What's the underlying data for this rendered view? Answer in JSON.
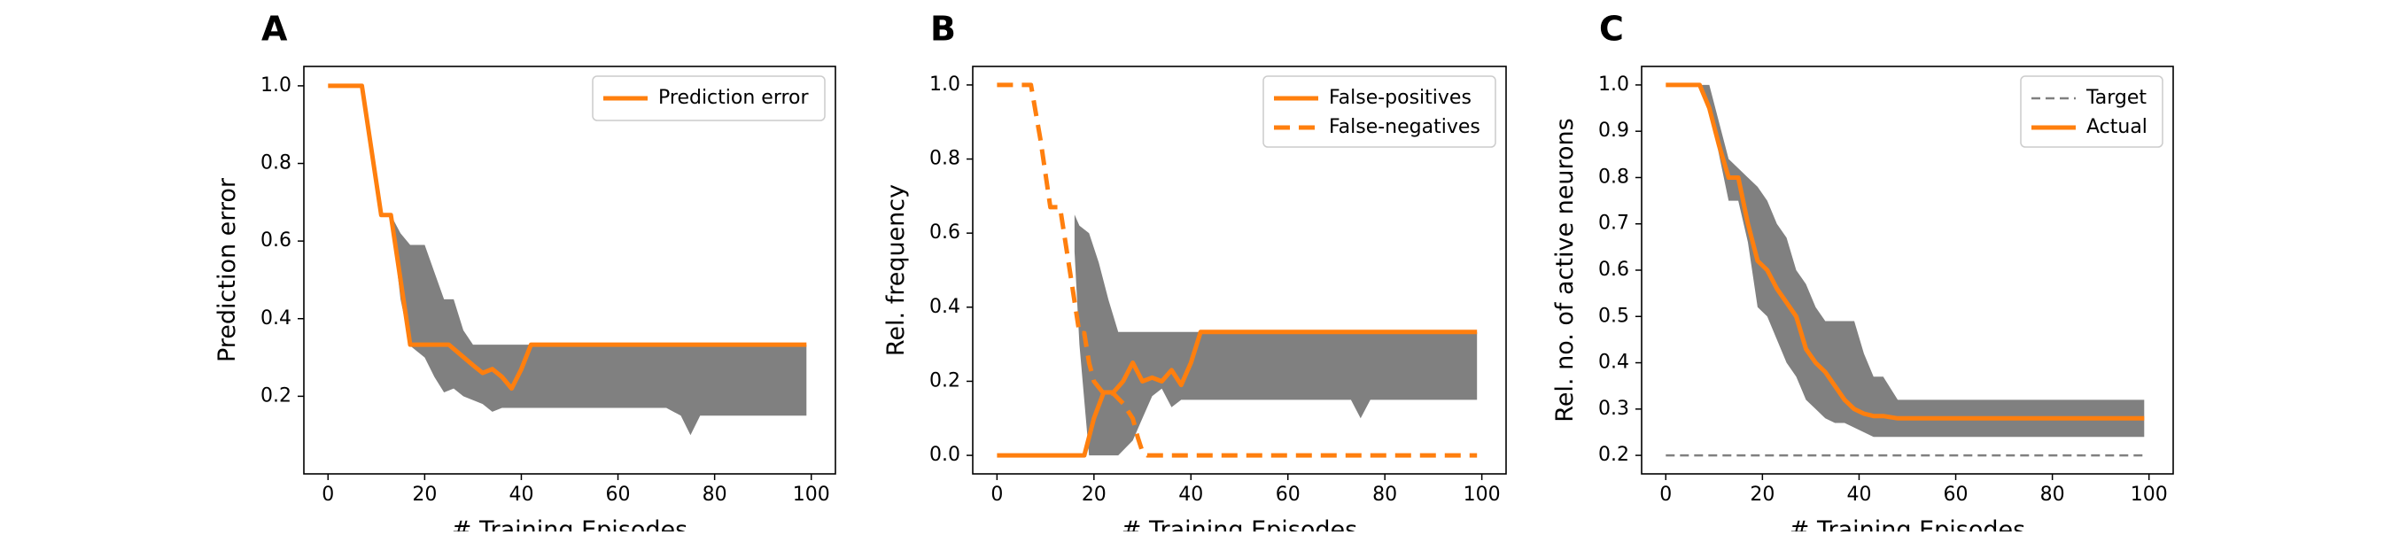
{
  "figure": {
    "panel_letters": [
      "A",
      "B",
      "C"
    ]
  },
  "colors": {
    "accent": "#ff7f0e",
    "band": "#808080",
    "target": "#808080",
    "axis": "#000000"
  },
  "chart_data": [
    {
      "type": "line",
      "panel": "A",
      "xlabel": "# Training Episodes",
      "ylabel": "Prediction error",
      "xlim": [
        -5,
        105
      ],
      "ylim": [
        0.0,
        1.05
      ],
      "xticks": [
        0,
        20,
        40,
        60,
        80,
        100
      ],
      "yticks": [
        0.2,
        0.4,
        0.6,
        0.8,
        1.0
      ],
      "legend_position": "top-right",
      "series": [
        {
          "name": "Prediction error",
          "style": "solid",
          "x": [
            0,
            7,
            11,
            13,
            15,
            17,
            20,
            25,
            30,
            32,
            34,
            36,
            38,
            40,
            42,
            99
          ],
          "y": [
            1.0,
            1.0,
            0.667,
            0.667,
            0.5,
            0.333,
            0.333,
            0.333,
            0.28,
            0.26,
            0.27,
            0.25,
            0.22,
            0.27,
            0.333,
            0.333
          ]
        }
      ],
      "band": {
        "x": [
          13,
          15,
          17,
          20,
          22,
          24,
          26,
          28,
          30,
          32,
          34,
          36,
          40,
          50,
          60,
          70,
          73,
          75,
          77,
          80,
          90,
          99
        ],
        "upper": [
          0.667,
          0.62,
          0.59,
          0.59,
          0.52,
          0.45,
          0.45,
          0.37,
          0.333,
          0.333,
          0.333,
          0.333,
          0.333,
          0.333,
          0.333,
          0.333,
          0.333,
          0.333,
          0.333,
          0.333,
          0.333,
          0.333
        ],
        "lower": [
          0.667,
          0.45,
          0.33,
          0.3,
          0.25,
          0.21,
          0.22,
          0.2,
          0.19,
          0.18,
          0.16,
          0.17,
          0.17,
          0.17,
          0.17,
          0.17,
          0.15,
          0.1,
          0.15,
          0.15,
          0.15,
          0.15
        ]
      }
    },
    {
      "type": "line",
      "panel": "B",
      "xlabel": "# Training Episodes",
      "ylabel": "Rel. frequency",
      "xlim": [
        -5,
        105
      ],
      "ylim": [
        -0.05,
        1.05
      ],
      "xticks": [
        0,
        20,
        40,
        60,
        80,
        100
      ],
      "yticks": [
        0.0,
        0.2,
        0.4,
        0.6,
        0.8,
        1.0
      ],
      "legend_position": "top-right",
      "series": [
        {
          "name": "False-positives",
          "style": "solid",
          "x": [
            0,
            15,
            18,
            20,
            22,
            24,
            26,
            28,
            30,
            32,
            34,
            36,
            38,
            40,
            42,
            99
          ],
          "y": [
            0,
            0,
            0,
            0.1,
            0.17,
            0.17,
            0.2,
            0.25,
            0.2,
            0.21,
            0.2,
            0.23,
            0.19,
            0.25,
            0.333,
            0.333
          ]
        },
        {
          "name": "False-negatives",
          "style": "dashed",
          "x": [
            0,
            7,
            9,
            11,
            13,
            15,
            17,
            18,
            19,
            20,
            22,
            24,
            26,
            28,
            29,
            30,
            31,
            99
          ],
          "y": [
            1.0,
            1.0,
            0.85,
            0.67,
            0.67,
            0.5,
            0.33,
            0.33,
            0.25,
            0.2,
            0.167,
            0.167,
            0.14,
            0.1,
            0.05,
            0.01,
            0,
            0
          ]
        }
      ],
      "band": {
        "x": [
          16,
          17,
          19,
          21,
          23,
          25,
          28,
          30,
          32,
          34,
          36,
          38,
          40,
          42,
          50,
          60,
          70,
          73,
          75,
          77,
          80,
          90,
          99
        ],
        "upper": [
          0.65,
          0.62,
          0.6,
          0.52,
          0.42,
          0.333,
          0.333,
          0.333,
          0.333,
          0.333,
          0.333,
          0.333,
          0.333,
          0.333,
          0.333,
          0.333,
          0.333,
          0.333,
          0.333,
          0.333,
          0.333,
          0.333,
          0.333
        ],
        "lower": [
          0.55,
          0.3,
          0.0,
          0.0,
          0.0,
          0.0,
          0.04,
          0.1,
          0.16,
          0.18,
          0.13,
          0.15,
          0.15,
          0.15,
          0.15,
          0.15,
          0.15,
          0.15,
          0.1,
          0.15,
          0.15,
          0.15,
          0.15
        ]
      }
    },
    {
      "type": "line",
      "panel": "C",
      "xlabel": "# Training Episodes",
      "ylabel": "Rel. no. of active neurons",
      "xlim": [
        -5,
        105
      ],
      "ylim": [
        0.16,
        1.04
      ],
      "xticks": [
        0,
        20,
        40,
        60,
        80,
        100
      ],
      "yticks": [
        0.2,
        0.3,
        0.4,
        0.5,
        0.6,
        0.7,
        0.8,
        0.9,
        1.0
      ],
      "legend_position": "top-right",
      "series": [
        {
          "name": "Target",
          "style": "thin-dashed",
          "x": [
            0,
            99
          ],
          "y": [
            0.2,
            0.2
          ]
        },
        {
          "name": "Actual",
          "style": "solid",
          "x": [
            0,
            7,
            9,
            11,
            13,
            15,
            17,
            19,
            21,
            23,
            25,
            27,
            29,
            31,
            33,
            35,
            37,
            39,
            41,
            43,
            45,
            48,
            50,
            60,
            70,
            80,
            90,
            99
          ],
          "y": [
            1.0,
            1.0,
            0.95,
            0.87,
            0.8,
            0.8,
            0.7,
            0.62,
            0.6,
            0.56,
            0.53,
            0.5,
            0.43,
            0.4,
            0.38,
            0.35,
            0.32,
            0.3,
            0.29,
            0.285,
            0.285,
            0.28,
            0.28,
            0.28,
            0.28,
            0.28,
            0.28,
            0.28
          ]
        }
      ],
      "band": {
        "x": [
          7,
          9,
          11,
          13,
          15,
          17,
          19,
          21,
          23,
          25,
          27,
          29,
          31,
          33,
          35,
          37,
          39,
          41,
          43,
          45,
          48,
          50,
          60,
          70,
          80,
          90,
          99
        ],
        "upper": [
          1.0,
          1.0,
          0.92,
          0.84,
          0.82,
          0.8,
          0.78,
          0.75,
          0.7,
          0.67,
          0.6,
          0.57,
          0.52,
          0.49,
          0.49,
          0.49,
          0.49,
          0.42,
          0.37,
          0.37,
          0.32,
          0.32,
          0.32,
          0.32,
          0.32,
          0.32,
          0.32
        ],
        "lower": [
          1.0,
          0.95,
          0.85,
          0.75,
          0.75,
          0.66,
          0.52,
          0.5,
          0.45,
          0.4,
          0.37,
          0.32,
          0.3,
          0.28,
          0.27,
          0.27,
          0.26,
          0.25,
          0.24,
          0.24,
          0.24,
          0.24,
          0.24,
          0.24,
          0.24,
          0.24,
          0.24
        ]
      }
    }
  ]
}
